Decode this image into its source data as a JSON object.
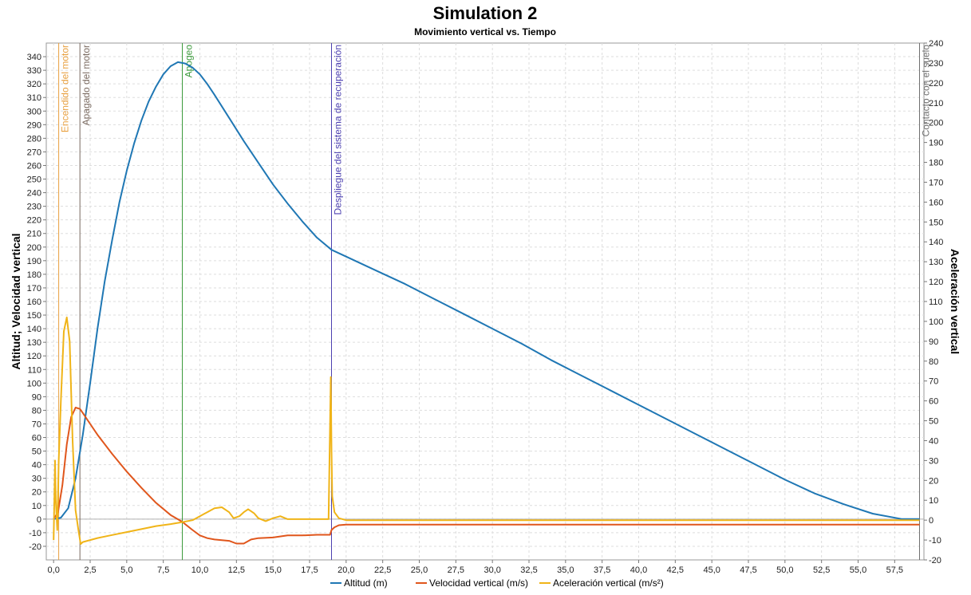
{
  "chart_data": {
    "type": "line",
    "title": "Simulation 2",
    "subtitle": "Movimiento vertical vs. Tiempo",
    "xlabel": "",
    "ylabel_left": "Altitud; Velocidad vertical",
    "ylabel_right": "Aceleración vertical",
    "xlim": [
      -0.5,
      59.5
    ],
    "ylim_left": [
      -30,
      350
    ],
    "ylim_right": [
      -20,
      240
    ],
    "x_ticks": [
      "0,0",
      "2,5",
      "5,0",
      "7,5",
      "10,0",
      "12,5",
      "15,0",
      "17,5",
      "20,0",
      "22,5",
      "25,0",
      "27,5",
      "30,0",
      "32,5",
      "35,0",
      "37,5",
      "40,0",
      "42,5",
      "45,0",
      "47,5",
      "50,0",
      "52,5",
      "55,0",
      "57,5"
    ],
    "y_ticks_left": [
      "-20",
      "-10",
      "0",
      "10",
      "20",
      "30",
      "40",
      "50",
      "60",
      "70",
      "80",
      "90",
      "100",
      "110",
      "120",
      "130",
      "140",
      "150",
      "160",
      "170",
      "180",
      "190",
      "200",
      "210",
      "220",
      "230",
      "240",
      "250",
      "260",
      "270",
      "280",
      "290",
      "300",
      "310",
      "320",
      "330",
      "340"
    ],
    "y_ticks_right": [
      "-20",
      "-10",
      "0",
      "10",
      "20",
      "30",
      "40",
      "50",
      "60",
      "70",
      "80",
      "90",
      "100",
      "110",
      "120",
      "130",
      "140",
      "150",
      "160",
      "170",
      "180",
      "190",
      "200",
      "210",
      "220",
      "230",
      "240"
    ],
    "grid": true,
    "legend_position": "bottom",
    "series": [
      {
        "name": "Altitud (m)",
        "axis": "left",
        "color": "#1f77b4",
        "x": [
          0,
          0.5,
          1,
          1.5,
          2,
          2.5,
          3,
          3.5,
          4,
          4.5,
          5,
          5.5,
          6,
          6.5,
          7,
          7.5,
          8,
          8.5,
          9,
          9.5,
          10,
          10.5,
          11,
          12,
          13,
          14,
          15,
          16,
          17,
          18,
          19,
          20,
          22,
          24,
          26,
          28,
          30,
          32,
          34,
          36,
          38,
          40,
          42,
          44,
          46,
          48,
          50,
          52,
          54,
          56,
          58,
          59.2
        ],
        "y": [
          0,
          1,
          8,
          30,
          62,
          100,
          140,
          175,
          205,
          233,
          256,
          276,
          293,
          307,
          318,
          327,
          333,
          336,
          335,
          332,
          327,
          320,
          312,
          295,
          278,
          262,
          246,
          232,
          219,
          207,
          198,
          193,
          183,
          173,
          162,
          151,
          140,
          129,
          117,
          106,
          95,
          84,
          73,
          62,
          51,
          40,
          29,
          19,
          11,
          4,
          0,
          0
        ]
      },
      {
        "name": "Velocidad vertical (m/s)",
        "axis": "left",
        "color": "#e0561c",
        "x": [
          0,
          0.3,
          0.6,
          0.9,
          1.2,
          1.5,
          1.8,
          2,
          2.5,
          3,
          4,
          5,
          6,
          7,
          8,
          8.8,
          9.5,
          10,
          10.5,
          11,
          12,
          12.5,
          13,
          13.5,
          14,
          15,
          16,
          17,
          18,
          18.9,
          19,
          19.2,
          19.5,
          20,
          22,
          25,
          30,
          35,
          40,
          45,
          50,
          55,
          59.2
        ],
        "y": [
          0,
          5,
          25,
          55,
          75,
          82,
          81,
          78,
          70,
          62,
          48,
          35,
          23,
          12,
          3,
          -2,
          -8,
          -12,
          -14,
          -15,
          -16,
          -18,
          -18,
          -15,
          -14,
          -13.5,
          -12,
          -12,
          -11.5,
          -11.5,
          -8,
          -6,
          -4.5,
          -4,
          -4,
          -4,
          -4,
          -4,
          -4,
          -4,
          -4,
          -4,
          -4
        ]
      },
      {
        "name": "Aceleración vertical (m/s²)",
        "axis": "right",
        "color": "#f0b418",
        "x": [
          0,
          0.1,
          0.15,
          0.25,
          0.35,
          0.5,
          0.7,
          0.9,
          1.1,
          1.3,
          1.5,
          1.7,
          1.85,
          2,
          2.5,
          3,
          4,
          5,
          6,
          7,
          8,
          8.8,
          9.5,
          10,
          10.5,
          11,
          11.5,
          12,
          12.3,
          12.7,
          13,
          13.3,
          13.7,
          14,
          14.5,
          15,
          15.5,
          16,
          17,
          18,
          18.8,
          18.95,
          19,
          19.05,
          19.2,
          19.5,
          20,
          25,
          30,
          35,
          40,
          45,
          50,
          55,
          59.2
        ],
        "y": [
          -10,
          30,
          10,
          -5,
          30,
          60,
          95,
          102,
          90,
          40,
          5,
          -5,
          -12,
          -11,
          -10,
          -9,
          -7.5,
          -6,
          -4.5,
          -3,
          -2,
          -1,
          0,
          2,
          4,
          6,
          6.5,
          4,
          1,
          2,
          4,
          5.5,
          3.5,
          1,
          -0.5,
          1,
          2,
          0.5,
          0.5,
          0.5,
          0.5,
          72,
          35,
          12,
          4,
          1,
          0,
          0,
          0,
          0,
          0,
          0,
          0,
          0,
          0
        ]
      }
    ],
    "events": [
      {
        "label": "Encendido del motor",
        "x": 0.35,
        "color": "#e8a040"
      },
      {
        "label": "Apagado del motor",
        "x": 1.8,
        "color": "#7a6a60"
      },
      {
        "label": "Apogeo",
        "x": 8.8,
        "color": "#3c9a3c"
      },
      {
        "label": "Despliegue del sistema de recuperación",
        "x": 19.0,
        "color": "#4c40b0"
      },
      {
        "label": "Contacto con el suelo",
        "x": 59.2,
        "color": "#707070"
      }
    ]
  }
}
